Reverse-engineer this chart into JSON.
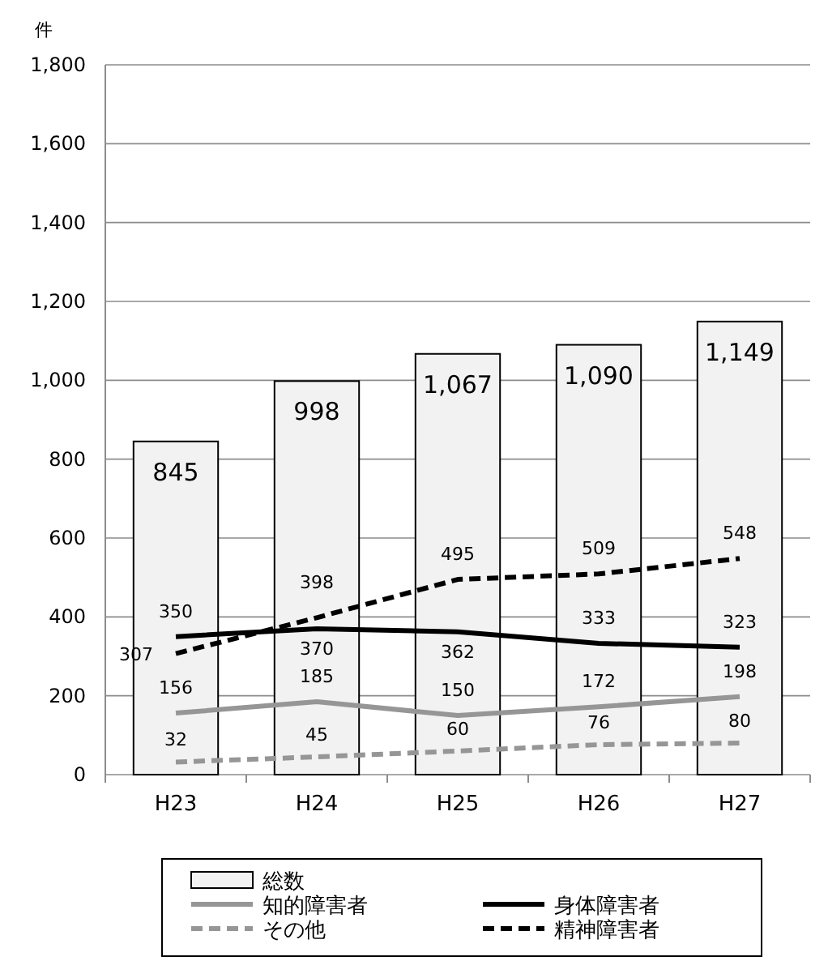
{
  "chart_data": {
    "type": "bar",
    "ylabel": "件",
    "categories": [
      "H23",
      "H24",
      "H25",
      "H26",
      "H27"
    ],
    "ylim": [
      0,
      1800
    ],
    "yticks": [
      {
        "value": 0,
        "label": "0"
      },
      {
        "value": 200,
        "label": "200"
      },
      {
        "value": 400,
        "label": "400"
      },
      {
        "value": 600,
        "label": "600"
      },
      {
        "value": 800,
        "label": "800"
      },
      {
        "value": 1000,
        "label": "1,000"
      },
      {
        "value": 1200,
        "label": "1,200"
      },
      {
        "value": 1400,
        "label": "1,400"
      },
      {
        "value": 1600,
        "label": "1,600"
      },
      {
        "value": 1800,
        "label": "1,800"
      }
    ],
    "grid": "y",
    "legend": "bottom",
    "data_labels": true,
    "series": [
      {
        "name": "総数",
        "color": "#f2f2f2",
        "values": [
          845,
          998,
          1067,
          1090,
          1149
        ],
        "value_labels": [
          "845",
          "998",
          "1,067",
          "1,090",
          "1,149"
        ]
      },
      {
        "name": "身体障害者",
        "type": "line",
        "color": "#000000",
        "line_style": "solid",
        "values": [
          350,
          370,
          362,
          333,
          323
        ]
      },
      {
        "name": "知的障害者",
        "type": "line",
        "color": "#969696",
        "line_style": "solid",
        "values": [
          156,
          185,
          150,
          172,
          198
        ]
      },
      {
        "name": "精神障害者",
        "type": "line",
        "color": "#000000",
        "line_style": "dashed",
        "values": [
          307,
          398,
          495,
          509,
          548
        ]
      },
      {
        "name": "その他",
        "type": "line",
        "color": "#969696",
        "line_style": "dashed",
        "values": [
          32,
          45,
          60,
          76,
          80
        ]
      }
    ]
  }
}
